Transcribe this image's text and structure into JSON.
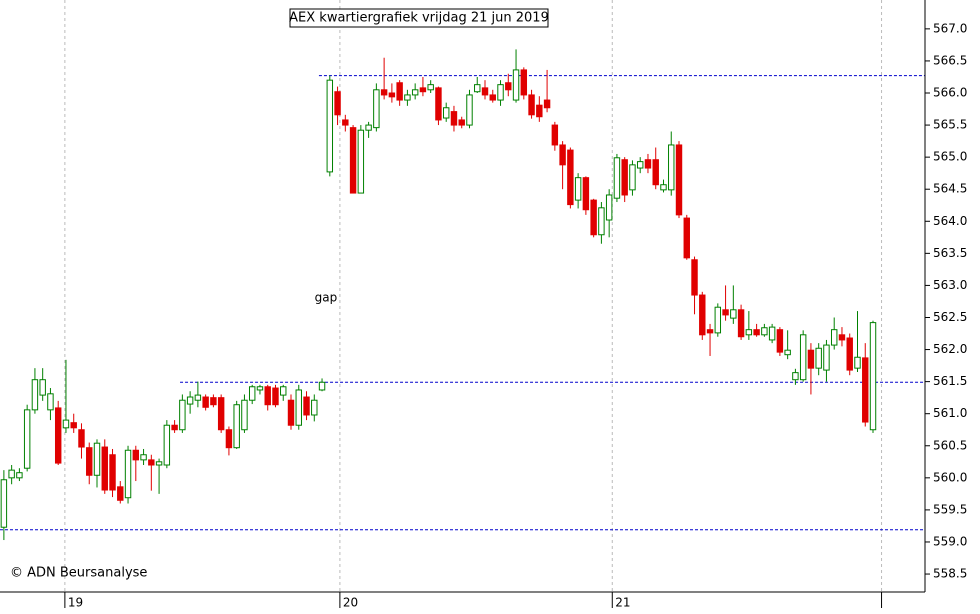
{
  "chart_data": {
    "type": "candlestick",
    "title": "AEX kwartiergrafiek vrijdag 21 jun 2019",
    "annotation": "gap",
    "copyright": "© ADN Beursanalyse",
    "up_color": "#008000",
    "down_color": "#e00000",
    "level_color": "#0000cc",
    "ylim": [
      558.22,
      567.45
    ],
    "yticks": [
      {
        "value": 558.5,
        "label": "558.5"
      },
      {
        "value": 559,
        "label": "559.0"
      },
      {
        "value": 559.5,
        "label": "559.5"
      },
      {
        "value": 560,
        "label": "560.0"
      },
      {
        "value": 560.5,
        "label": "560.5"
      },
      {
        "value": 561,
        "label": "561.0"
      },
      {
        "value": 561.5,
        "label": "561.5"
      },
      {
        "value": 562,
        "label": "562.0"
      },
      {
        "value": 562.5,
        "label": "562.5"
      },
      {
        "value": 563,
        "label": "563.0"
      },
      {
        "value": 563.5,
        "label": "563.5"
      },
      {
        "value": 564,
        "label": "564.0"
      },
      {
        "value": 564.5,
        "label": "564.5"
      },
      {
        "value": 565,
        "label": "565.0"
      },
      {
        "value": 565.5,
        "label": "565.5"
      },
      {
        "value": 566,
        "label": "566.0"
      },
      {
        "value": 566.5,
        "label": "566.5"
      },
      {
        "value": 567,
        "label": "567.0"
      }
    ],
    "xlim": [
      -0.5,
      118.7
    ],
    "xticks": [
      {
        "value": 7.86,
        "label": "19"
      },
      {
        "value": 43.3,
        "label": "20"
      },
      {
        "value": 78.4,
        "label": "21"
      }
    ],
    "vlines": [
      113.1
    ],
    "annotation_x": 41.5,
    "annotation_y": 562.8,
    "levels": [
      {
        "value": 566.27,
        "from": 40.6
      },
      {
        "value": 561.49,
        "from": 22.7
      },
      {
        "value": 559.19,
        "from": -0.5
      }
    ],
    "open": [
      559.23,
      560.0,
      560.0,
      560.15,
      561.06,
      561.29,
      561.06,
      561.09,
      560.78,
      560.86,
      560.75,
      560.47,
      560.04,
      560.48,
      560.36,
      559.86,
      559.69,
      560.43,
      560.28,
      560.28,
      560.2,
      560.2,
      560.82,
      560.75,
      561.15,
      561.21,
      561.26,
      561.25,
      561.25,
      560.75,
      560.47,
      560.75,
      561.21,
      561.37,
      561.42,
      561.4,
      561.29,
      561.21,
      560.82,
      561.26,
      560.98,
      561.37,
      564.77,
      566.02,
      565.58,
      565.46,
      564.44,
      565.42,
      565.46,
      566.05,
      566.0,
      566.16,
      565.89,
      565.97,
      566.08,
      566.05,
      566.08,
      565.61,
      565.71,
      565.58,
      565.5,
      566.02,
      566.08,
      565.97,
      565.89,
      566.16,
      565.89,
      566.36,
      565.97,
      565.81,
      565.89,
      565.5,
      565.19,
      565.11,
      564.33,
      564.68,
      564.33,
      563.79,
      564.02,
      564.36,
      564.96,
      564.49,
      564.83,
      564.96,
      564.96,
      564.49,
      564.49,
      565.19,
      564.05,
      563.4,
      562.85,
      562.31,
      562.26,
      562.62,
      562.49,
      562.62,
      562.23,
      562.31,
      562.23,
      562.15,
      562.31,
      561.92,
      561.53,
      561.53,
      561.99,
      561.71,
      561.68,
      562.07,
      562.23,
      562.18,
      561.71,
      561.87,
      560.75
    ],
    "high": [
      560.12,
      560.2,
      560.15,
      561.14,
      561.71,
      561.71,
      561.4,
      561.2,
      561.84,
      561.0,
      560.85,
      560.55,
      560.6,
      560.6,
      560.45,
      559.95,
      560.5,
      560.5,
      560.45,
      560.36,
      560.3,
      560.9,
      560.9,
      561.3,
      561.35,
      561.5,
      561.3,
      561.3,
      561.3,
      560.8,
      561.2,
      561.3,
      561.45,
      561.45,
      561.45,
      561.45,
      561.45,
      561.3,
      561.45,
      561.35,
      561.3,
      561.55,
      566.27,
      566.1,
      565.66,
      565.5,
      565.5,
      565.55,
      566.15,
      566.55,
      566.15,
      566.2,
      566.05,
      566.15,
      566.25,
      566.2,
      566.1,
      565.85,
      565.8,
      565.63,
      566.05,
      566.25,
      566.2,
      566.05,
      566.2,
      566.3,
      566.68,
      566.4,
      566.05,
      565.95,
      566.36,
      565.55,
      565.25,
      565.15,
      564.75,
      564.7,
      564.35,
      564.3,
      564.5,
      565.05,
      565.0,
      564.95,
      565.0,
      565.05,
      565.15,
      564.65,
      565.4,
      565.25,
      564.1,
      563.45,
      562.9,
      562.4,
      562.72,
      563.0,
      563.0,
      562.7,
      562.6,
      562.4,
      562.4,
      562.4,
      562.35,
      562.3,
      561.7,
      562.3,
      562.1,
      562.1,
      562.15,
      562.5,
      562.35,
      562.25,
      562.6,
      562.1,
      562.45
    ],
    "low": [
      559.03,
      559.9,
      559.95,
      560.1,
      561.0,
      561.2,
      560.9,
      560.2,
      560.7,
      560.7,
      560.3,
      559.9,
      559.85,
      559.75,
      559.7,
      559.6,
      559.6,
      559.95,
      560.2,
      559.8,
      559.75,
      560.15,
      560.7,
      560.7,
      561.0,
      561.1,
      561.05,
      561.1,
      560.7,
      560.35,
      560.45,
      560.7,
      561.15,
      561.3,
      561.05,
      561.1,
      561.2,
      560.75,
      560.75,
      560.9,
      560.88,
      561.35,
      564.7,
      565.5,
      565.4,
      564.44,
      564.44,
      565.3,
      565.4,
      565.9,
      565.85,
      565.8,
      565.8,
      565.9,
      565.95,
      566.0,
      565.5,
      565.55,
      565.4,
      565.45,
      565.45,
      566.0,
      565.9,
      565.85,
      565.8,
      565.95,
      565.85,
      565.9,
      565.6,
      565.55,
      565.7,
      565.1,
      564.5,
      564.2,
      564.2,
      564.1,
      563.75,
      563.65,
      563.75,
      564.3,
      564.3,
      564.4,
      564.75,
      564.75,
      564.5,
      564.45,
      564.4,
      564.05,
      563.4,
      562.55,
      562.15,
      561.9,
      562.2,
      562.45,
      562.4,
      562.15,
      562.15,
      562.2,
      562.2,
      562.1,
      561.9,
      561.85,
      561.45,
      561.5,
      561.3,
      561.6,
      561.5,
      562.0,
      562.05,
      561.6,
      561.65,
      560.8,
      560.7
    ],
    "close": [
      559.97,
      560.12,
      560.08,
      561.06,
      561.53,
      561.53,
      561.31,
      560.23,
      560.9,
      560.78,
      560.48,
      560.04,
      560.54,
      559.81,
      559.81,
      559.65,
      560.43,
      560.28,
      560.36,
      560.2,
      560.25,
      560.82,
      560.75,
      561.21,
      561.26,
      561.29,
      561.1,
      561.14,
      560.75,
      560.47,
      561.14,
      561.21,
      561.42,
      561.42,
      561.14,
      561.14,
      561.42,
      560.82,
      561.37,
      560.98,
      561.21,
      561.49,
      566.2,
      565.66,
      565.5,
      564.44,
      565.42,
      565.5,
      566.05,
      565.97,
      565.94,
      565.89,
      565.97,
      566.05,
      566.02,
      566.13,
      565.58,
      565.77,
      565.5,
      565.5,
      565.97,
      566.13,
      565.97,
      565.89,
      566.13,
      566.05,
      566.36,
      565.97,
      565.66,
      565.63,
      565.77,
      565.19,
      564.88,
      564.26,
      564.68,
      564.18,
      563.79,
      564.21,
      564.41,
      564.99,
      564.41,
      564.88,
      564.93,
      564.83,
      564.57,
      564.57,
      565.19,
      564.1,
      563.43,
      562.85,
      562.23,
      562.26,
      562.66,
      562.54,
      562.62,
      562.2,
      562.31,
      562.23,
      562.34,
      562.35,
      561.96,
      561.99,
      561.64,
      562.23,
      561.71,
      562.02,
      562.07,
      562.31,
      562.15,
      561.68,
      561.88,
      560.87,
      562.42
    ]
  }
}
